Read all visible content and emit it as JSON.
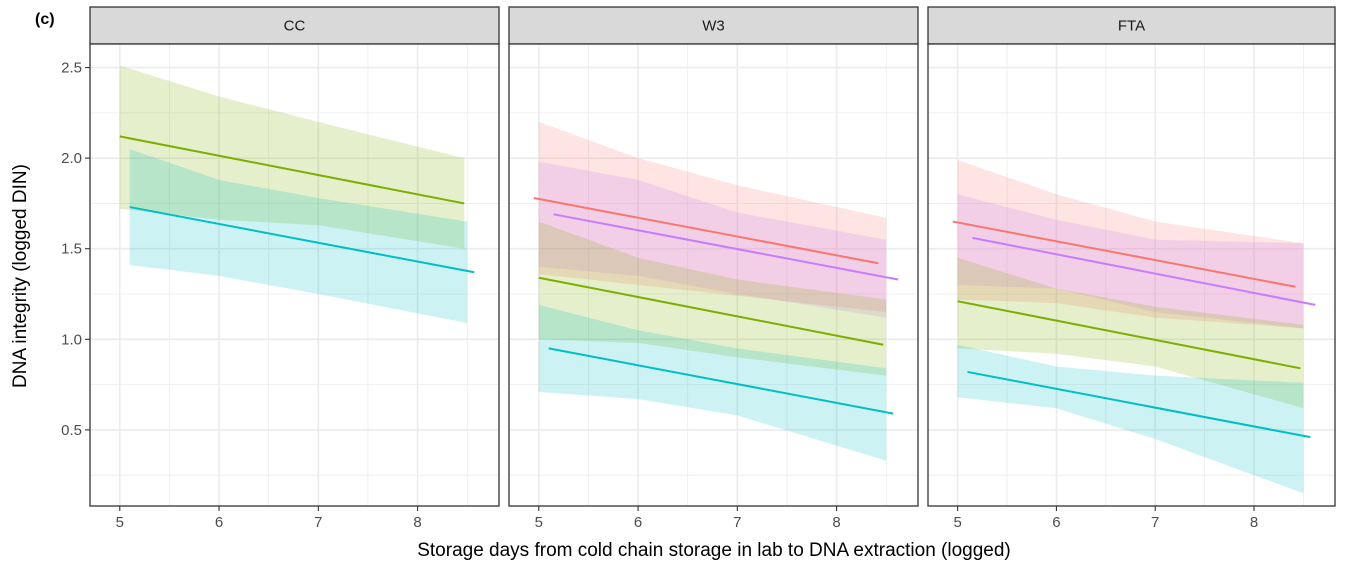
{
  "figure": {
    "panel_tag": "(c)",
    "xlabel": "Storage days from cold chain storage in lab to DNA extraction (logged)",
    "ylabel": "DNA integrity (logged DIN)"
  },
  "colors": {
    "red": "#F8766D",
    "green": "#7CAE00",
    "cyan": "#00BFC4",
    "purple": "#C77CFF",
    "strip_bg": "#D9D9D9",
    "grid": "#EBEBEB"
  },
  "chart_data": {
    "type": "line",
    "xlim": [
      4.7,
      8.82
    ],
    "ylim": [
      0.08,
      2.63
    ],
    "x_ticks": [
      5,
      6,
      7,
      8
    ],
    "y_ticks": [
      0.5,
      1.0,
      1.5,
      2.0,
      2.5
    ],
    "y_tick_labels": [
      "0.5",
      "1.0",
      "1.5",
      "2.0",
      "2.5"
    ],
    "panels": [
      {
        "strip": "CC",
        "series": [
          {
            "color": "green",
            "x": [
              5.0,
              8.47
            ],
            "y": [
              2.12,
              1.75
            ],
            "ribbon": {
              "x": [
                5.0,
                6.0,
                7.0,
                8.47
              ],
              "lower": [
                1.72,
                1.66,
                1.63,
                1.5
              ],
              "upper": [
                2.51,
                2.34,
                2.2,
                2.0
              ]
            }
          },
          {
            "color": "cyan",
            "x": [
              5.1,
              8.57
            ],
            "y": [
              1.73,
              1.37
            ],
            "ribbon": {
              "x": [
                5.1,
                6.0,
                7.0,
                8.5
              ],
              "lower": [
                1.41,
                1.35,
                1.25,
                1.09
              ],
              "upper": [
                2.05,
                1.88,
                1.78,
                1.65
              ]
            }
          }
        ]
      },
      {
        "strip": "W3",
        "series": [
          {
            "color": "red",
            "x": [
              4.95,
              8.42
            ],
            "y": [
              1.78,
              1.42
            ],
            "ribbon": {
              "x": [
                5.0,
                6.0,
                7.0,
                8.5
              ],
              "lower": [
                1.36,
                1.3,
                1.24,
                1.15
              ],
              "upper": [
                2.2,
                2.0,
                1.85,
                1.67
              ]
            }
          },
          {
            "color": "purple",
            "x": [
              5.15,
              8.62
            ],
            "y": [
              1.69,
              1.33
            ],
            "ribbon": {
              "x": [
                5.0,
                6.0,
                7.0,
                8.5
              ],
              "lower": [
                1.4,
                1.35,
                1.25,
                1.12
              ],
              "upper": [
                1.98,
                1.88,
                1.7,
                1.55
              ]
            }
          },
          {
            "color": "green",
            "x": [
              5.0,
              8.47
            ],
            "y": [
              1.34,
              0.97
            ],
            "ribbon": {
              "x": [
                5.0,
                6.0,
                7.0,
                8.5
              ],
              "lower": [
                1.0,
                0.98,
                0.9,
                0.8
              ],
              "upper": [
                1.65,
                1.45,
                1.33,
                1.22
              ]
            }
          },
          {
            "color": "cyan",
            "x": [
              5.1,
              8.57
            ],
            "y": [
              0.95,
              0.59
            ],
            "ribbon": {
              "x": [
                5.0,
                6.0,
                7.0,
                8.5
              ],
              "lower": [
                0.71,
                0.67,
                0.58,
                0.33
              ],
              "upper": [
                1.19,
                1.05,
                0.95,
                0.84
              ]
            }
          }
        ]
      },
      {
        "strip": "FTA",
        "series": [
          {
            "color": "red",
            "x": [
              4.95,
              8.42
            ],
            "y": [
              1.65,
              1.29
            ],
            "ribbon": {
              "x": [
                5.0,
                6.0,
                7.0,
                8.5
              ],
              "lower": [
                1.22,
                1.2,
                1.12,
                1.06
              ],
              "upper": [
                1.99,
                1.8,
                1.65,
                1.53
              ]
            }
          },
          {
            "color": "purple",
            "x": [
              5.15,
              8.62
            ],
            "y": [
              1.56,
              1.19
            ],
            "ribbon": {
              "x": [
                5.0,
                6.0,
                7.0,
                8.5
              ],
              "lower": [
                1.3,
                1.28,
                1.15,
                1.06
              ],
              "upper": [
                1.8,
                1.66,
                1.55,
                1.53
              ]
            }
          },
          {
            "color": "green",
            "x": [
              5.0,
              8.47
            ],
            "y": [
              1.21,
              0.84
            ],
            "ribbon": {
              "x": [
                5.0,
                6.0,
                7.0,
                8.5
              ],
              "lower": [
                0.95,
                0.92,
                0.85,
                0.62
              ],
              "upper": [
                1.45,
                1.28,
                1.18,
                1.08
              ]
            }
          },
          {
            "color": "cyan",
            "x": [
              5.1,
              8.57
            ],
            "y": [
              0.82,
              0.46
            ],
            "ribbon": {
              "x": [
                5.0,
                6.0,
                7.0,
                8.5
              ],
              "lower": [
                0.68,
                0.62,
                0.45,
                0.15
              ],
              "upper": [
                0.97,
                0.85,
                0.8,
                0.76
              ]
            }
          }
        ]
      }
    ]
  }
}
